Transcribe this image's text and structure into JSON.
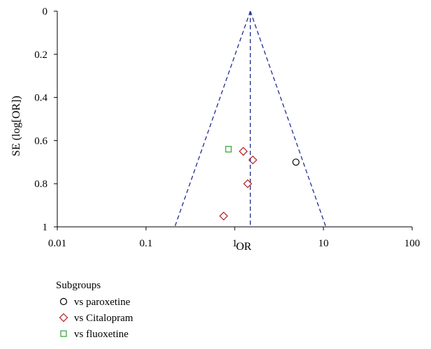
{
  "chart_data": {
    "type": "scatter",
    "subtype": "funnel-plot",
    "xlabel": "OR",
    "ylabel": "SE (log[OR])",
    "x_scale": "log",
    "xlim": [
      0.01,
      100
    ],
    "ylim": [
      0,
      1
    ],
    "y_inverted": true,
    "x_ticks": [
      {
        "value": 0.01,
        "label": "0.01"
      },
      {
        "value": 0.1,
        "label": "0.1"
      },
      {
        "value": 1,
        "label": "1"
      },
      {
        "value": 10,
        "label": "10"
      },
      {
        "value": 100,
        "label": "100"
      }
    ],
    "y_ticks": [
      {
        "value": 0,
        "label": "0"
      },
      {
        "value": 0.2,
        "label": "0.2"
      },
      {
        "value": 0.4,
        "label": "0.4"
      },
      {
        "value": 0.6,
        "label": "0.6"
      },
      {
        "value": 0.8,
        "label": "0.8"
      },
      {
        "value": 1,
        "label": "1"
      }
    ],
    "pooled_or": 1.5,
    "funnel_lines_color": "#1f2f8f",
    "legend": {
      "title": "Subgroups",
      "placement": "bottom-left"
    },
    "series": [
      {
        "name": "vs paroxetine",
        "marker": "circle",
        "color": "#000000",
        "points": [
          {
            "x": 4.9,
            "y": 0.7
          }
        ]
      },
      {
        "name": "vs Citalopram",
        "marker": "diamond",
        "color": "#b01e24",
        "points": [
          {
            "x": 1.25,
            "y": 0.65
          },
          {
            "x": 1.6,
            "y": 0.69
          },
          {
            "x": 1.4,
            "y": 0.8
          },
          {
            "x": 0.75,
            "y": 0.95
          }
        ]
      },
      {
        "name": "vs fluoxetine",
        "marker": "square",
        "color": "#2ca02c",
        "points": [
          {
            "x": 0.85,
            "y": 0.64
          }
        ]
      }
    ]
  }
}
